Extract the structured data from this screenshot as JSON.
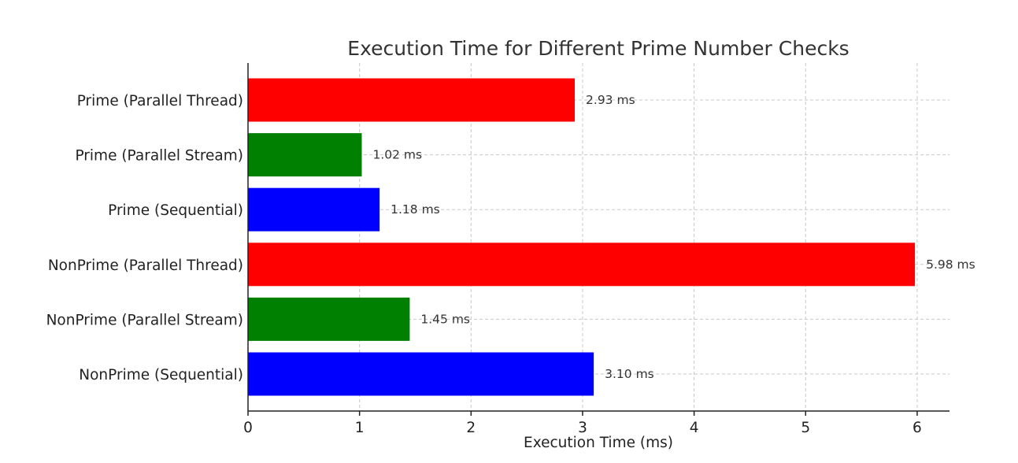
{
  "chart_data": {
    "type": "bar",
    "orientation": "horizontal",
    "title": "Execution Time for Different Prime Number Checks",
    "xlabel": "Execution Time (ms)",
    "ylabel": "",
    "xlim": [
      0,
      6.29
    ],
    "xticks": [
      0,
      1,
      2,
      3,
      4,
      5,
      6
    ],
    "grid": true,
    "categories": [
      "Prime (Parallel Thread)",
      "Prime (Parallel Stream)",
      "Prime (Sequential)",
      "NonPrime (Parallel Thread)",
      "NonPrime (Parallel Stream)",
      "NonPrime (Sequential)"
    ],
    "values": [
      2.93,
      1.02,
      1.18,
      5.98,
      1.45,
      3.1
    ],
    "value_labels": [
      "2.93 ms",
      "1.02 ms",
      "1.18 ms",
      "5.98 ms",
      "1.45 ms",
      "3.10 ms"
    ],
    "colors": [
      "#ff0000",
      "#008000",
      "#0000ff",
      "#ff0000",
      "#008000",
      "#0000ff"
    ]
  }
}
